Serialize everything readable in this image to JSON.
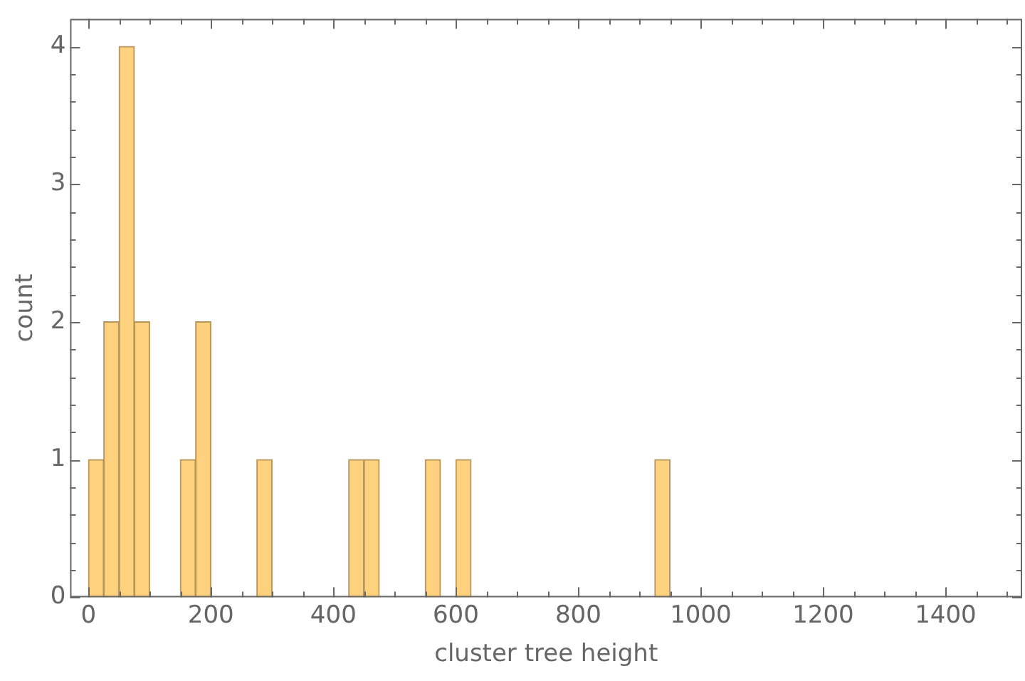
{
  "chart_data": {
    "type": "histogram",
    "xlabel": "cluster tree height",
    "ylabel": "count",
    "color": "#fed17e",
    "bins": [
      0,
      25,
      50,
      75,
      100,
      125,
      150,
      175,
      200,
      225,
      250,
      275,
      300,
      325,
      350,
      375,
      400,
      425,
      450,
      475,
      500,
      525,
      550,
      575,
      600,
      625,
      650,
      675,
      700,
      725,
      750,
      775,
      800,
      825,
      850,
      875,
      900,
      925,
      950
    ],
    "values": [
      1,
      2,
      4,
      2,
      0,
      0,
      1,
      2,
      0,
      0,
      0,
      1,
      0,
      0,
      0,
      0,
      0,
      1,
      1,
      0,
      0,
      0,
      1,
      0,
      1,
      0,
      0,
      0,
      0,
      0,
      0,
      0,
      0,
      0,
      0,
      0,
      0,
      1
    ],
    "xlim": [
      -30,
      1525
    ],
    "xticks": [
      0,
      {
        "value": 50,
        "label": null
      },
      {
        "value": 100,
        "label": null
      },
      {
        "value": 150,
        "label": null
      },
      200,
      {
        "value": 250,
        "label": null
      },
      {
        "value": 300,
        "label": null
      },
      {
        "value": 350,
        "label": null
      },
      400,
      {
        "value": 450,
        "label": null
      },
      {
        "value": 500,
        "label": null
      },
      {
        "value": 550,
        "label": null
      },
      600,
      {
        "value": 650,
        "label": null
      },
      {
        "value": 700,
        "label": null
      },
      {
        "value": 750,
        "label": null
      },
      800,
      {
        "value": 850,
        "label": null
      },
      {
        "value": 900,
        "label": null
      },
      {
        "value": 950,
        "label": null
      },
      1000,
      {
        "value": 1050,
        "label": null
      },
      {
        "value": 1100,
        "label": null
      },
      {
        "value": 1150,
        "label": null
      },
      1200,
      {
        "value": 1250,
        "label": null
      },
      {
        "value": 1300,
        "label": null
      },
      {
        "value": 1350,
        "label": null
      },
      1400,
      {
        "value": 1450,
        "label": null
      },
      {
        "value": 1500,
        "label": null
      }
    ],
    "ylim": [
      0,
      4.2
    ],
    "yticks": [
      0,
      {
        "value": 0.2,
        "label": null
      },
      {
        "value": 0.4,
        "label": null
      },
      {
        "value": 0.6,
        "label": null
      },
      {
        "value": 0.8,
        "label": null
      },
      1,
      {
        "value": 1.2,
        "label": null
      },
      {
        "value": 1.4,
        "label": null
      },
      {
        "value": 1.6,
        "label": null
      },
      {
        "value": 1.8,
        "label": null
      },
      2,
      {
        "value": 2.2,
        "label": null
      },
      {
        "value": 2.4,
        "label": null
      },
      {
        "value": 2.6,
        "label": null
      },
      {
        "value": 2.8,
        "label": null
      },
      3,
      {
        "value": 3.2,
        "label": null
      },
      {
        "value": 3.4,
        "label": null
      },
      {
        "value": 3.6,
        "label": null
      },
      {
        "value": 3.8,
        "label": null
      },
      4
    ],
    "grid": false,
    "legend": false
  }
}
